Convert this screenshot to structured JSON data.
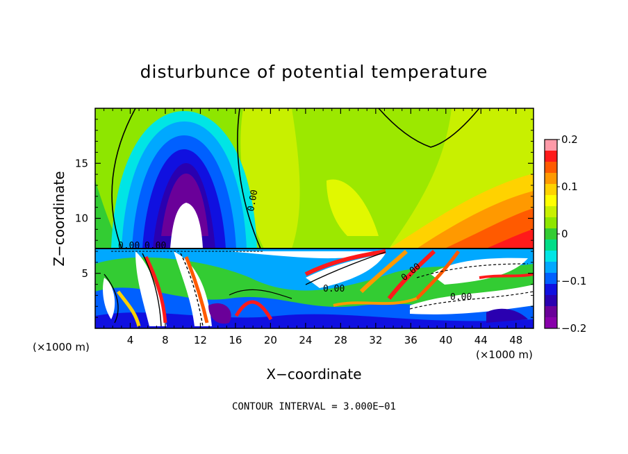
{
  "chart_data": {
    "type": "heatmap",
    "title": "disturbunce of potential temperature",
    "xlabel": "X−coordinate",
    "ylabel": "Z−coordinate",
    "x_unit": "(×1000 m)",
    "y_unit": "(×1000 m)",
    "xlim": [
      0,
      50
    ],
    "ylim": [
      0,
      20
    ],
    "x_ticks": [
      4,
      8,
      12,
      16,
      20,
      24,
      28,
      32,
      36,
      40,
      44,
      48
    ],
    "x_tick_labels": [
      "4",
      "8",
      "12",
      "16",
      "20",
      "24",
      "28",
      "32",
      "36",
      "40",
      "44",
      "48"
    ],
    "y_ticks": [
      5,
      10,
      15
    ],
    "y_tick_labels": [
      "5",
      "10",
      "15"
    ],
    "colorbar": {
      "min": -0.2,
      "max": 0.2,
      "tick_values": [
        0.2,
        0.1,
        0,
        -0.1,
        -0.2
      ],
      "tick_labels": [
        "0.2",
        "0.1",
        "0",
        "−0.1",
        "−0.2"
      ],
      "colors": [
        "#ff9aa8",
        "#ff1a1a",
        "#ff5a00",
        "#ff9900",
        "#ffd200",
        "#ffff00",
        "#c8f000",
        "#8ee600",
        "#33cc33",
        "#00dd88",
        "#00e5e5",
        "#00a8ff",
        "#0060ff",
        "#1010e0",
        "#2a00b0",
        "#6a0099",
        "#8800aa"
      ]
    },
    "contour_labels": [
      "0.00",
      "0.00",
      "0.00",
      "0.00",
      "0.00",
      "0.00"
    ],
    "contour_interval_text": "CONTOUR INTERVAL = 3.000E−01"
  }
}
